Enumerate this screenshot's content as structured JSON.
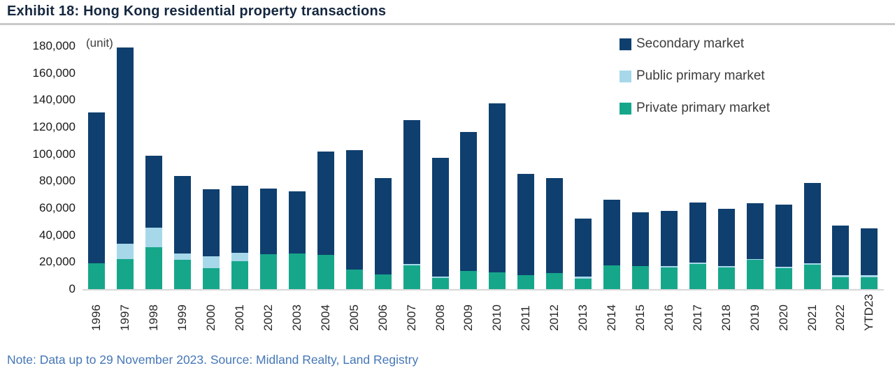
{
  "header": {
    "title": "Exhibit 18: Hong Kong residential property transactions",
    "title_color": "#15273f"
  },
  "footer": {
    "note": "Note: Data up to 29 November 2023. Source: Midland Realty, Land Registry",
    "note_color": "#4577b5"
  },
  "chart_data": {
    "type": "bar",
    "stacked": true,
    "title": "Exhibit 18: Hong Kong residential property transactions",
    "unit_label": "(unit)",
    "xlabel": "",
    "ylabel": "unit",
    "ylim": [
      0,
      180000
    ],
    "ytick_step": 20000,
    "y_tick_labels": [
      "0",
      "20,000",
      "40,000",
      "60,000",
      "80,000",
      "100,000",
      "120,000",
      "140,000",
      "160,000",
      "180,000"
    ],
    "grid": false,
    "legend_position": "top-right",
    "categories": [
      "1996",
      "1997",
      "1998",
      "1999",
      "2000",
      "2001",
      "2002",
      "2003",
      "2004",
      "2005",
      "2006",
      "2007",
      "2008",
      "2009",
      "2010",
      "2011",
      "2012",
      "2013",
      "2014",
      "2015",
      "2016",
      "2017",
      "2018",
      "2019",
      "2020",
      "2021",
      "2022",
      "YTD23"
    ],
    "series": [
      {
        "name": "Secondary market",
        "color": "#0f3f6e",
        "values": [
          112000,
          145500,
          53500,
          57500,
          49500,
          49500,
          48500,
          46000,
          76500,
          88500,
          71000,
          106500,
          88000,
          103000,
          125000,
          75000,
          70500,
          42500,
          48500,
          40000,
          41000,
          44500,
          42500,
          41000,
          46000,
          59500,
          36500,
          34500
        ]
      },
      {
        "name": "Public primary market",
        "color": "#a7d8ea",
        "values": [
          0,
          11500,
          14500,
          5000,
          9000,
          6500,
          0,
          0,
          0,
          0,
          0,
          1000,
          1000,
          0,
          0,
          0,
          0,
          1500,
          0,
          0,
          1000,
          1000,
          1000,
          1000,
          1000,
          1000,
          1500,
          1500
        ]
      },
      {
        "name": "Private primary market",
        "color": "#16a78b",
        "values": [
          19000,
          22000,
          31000,
          21500,
          15500,
          20500,
          26000,
          26500,
          25500,
          14500,
          11000,
          17500,
          8500,
          13500,
          12500,
          10500,
          12000,
          8000,
          17500,
          17000,
          16000,
          18500,
          16000,
          21500,
          15500,
          18000,
          9000,
          9000
        ]
      }
    ],
    "totals": [
      131000,
      179000,
      99000,
      84000,
      74000,
      76500,
      74500,
      72500,
      102000,
      103000,
      82000,
      125000,
      97500,
      116500,
      137500,
      85500,
      82500,
      52000,
      66000,
      57000,
      58000,
      64000,
      59500,
      63500,
      62500,
      78500,
      47000,
      45000
    ]
  }
}
